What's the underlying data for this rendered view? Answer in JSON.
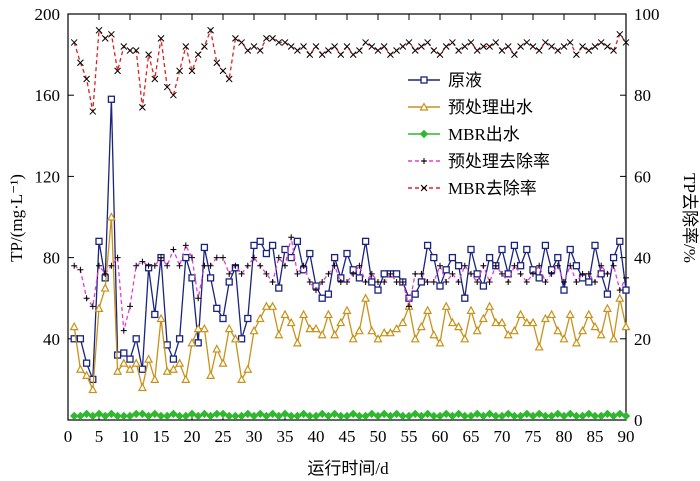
{
  "chart_data": {
    "type": "line",
    "xlabel": "运行时间/d",
    "ylabel_left": "TP/(mg·L⁻¹)",
    "ylabel_right": "TP去除率/%",
    "xlim": [
      0,
      90
    ],
    "ylim_left": [
      0,
      200
    ],
    "ylim_right": [
      0,
      100
    ],
    "x_ticks": [
      0,
      5,
      10,
      15,
      20,
      25,
      30,
      35,
      40,
      45,
      50,
      55,
      60,
      65,
      70,
      75,
      80,
      85,
      90
    ],
    "y_left_ticks": [
      40,
      80,
      120,
      160,
      200
    ],
    "y_right_ticks": [
      0,
      20,
      40,
      60,
      80,
      100
    ],
    "x": [
      1,
      2,
      3,
      4,
      5,
      6,
      7,
      8,
      9,
      10,
      11,
      12,
      13,
      14,
      15,
      16,
      17,
      18,
      19,
      20,
      21,
      22,
      23,
      24,
      25,
      26,
      27,
      28,
      29,
      30,
      31,
      32,
      33,
      34,
      35,
      36,
      37,
      38,
      39,
      40,
      41,
      42,
      43,
      44,
      45,
      46,
      47,
      48,
      49,
      50,
      51,
      52,
      53,
      54,
      55,
      56,
      57,
      58,
      59,
      60,
      61,
      62,
      63,
      64,
      65,
      66,
      67,
      68,
      69,
      70,
      71,
      72,
      73,
      74,
      75,
      76,
      77,
      78,
      79,
      80,
      81,
      82,
      83,
      84,
      85,
      86,
      87,
      88,
      89,
      90
    ],
    "series": [
      {
        "name": "原液",
        "axis": "left",
        "color": "#1a237e",
        "marker": "square",
        "values": [
          40,
          40,
          28,
          20,
          88,
          70,
          158,
          32,
          33,
          30,
          40,
          25,
          75,
          52,
          80,
          37,
          30,
          40,
          80,
          70,
          38,
          85,
          70,
          55,
          50,
          68,
          75,
          40,
          50,
          86,
          88,
          82,
          86,
          65,
          84,
          80,
          88,
          74,
          82,
          66,
          60,
          62,
          80,
          70,
          82,
          74,
          70,
          88,
          68,
          64,
          72,
          72,
          72,
          68,
          60,
          62,
          68,
          86,
          80,
          66,
          74,
          80,
          76,
          60,
          84,
          72,
          66,
          80,
          76,
          84,
          72,
          86,
          76,
          84,
          74,
          70,
          86,
          74,
          80,
          64,
          84,
          76,
          70,
          68,
          86,
          72,
          62,
          80,
          88,
          64
        ]
      },
      {
        "name": "预处理出水",
        "axis": "left",
        "color": "#c8921a",
        "marker": "triangle",
        "values": [
          46,
          25,
          22,
          15,
          55,
          65,
          100,
          24,
          28,
          25,
          28,
          16,
          30,
          20,
          50,
          24,
          25,
          28,
          20,
          38,
          45,
          45,
          22,
          35,
          28,
          45,
          40,
          20,
          25,
          44,
          50,
          56,
          56,
          42,
          52,
          48,
          38,
          52,
          45,
          45,
          42,
          52,
          42,
          48,
          54,
          40,
          44,
          60,
          44,
          40,
          43,
          43,
          45,
          48,
          56,
          40,
          46,
          54,
          42,
          38,
          56,
          48,
          46,
          40,
          54,
          44,
          50,
          56,
          48,
          48,
          42,
          44,
          52,
          48,
          48,
          36,
          50,
          52,
          44,
          40,
          52,
          38,
          44,
          52,
          46,
          42,
          55,
          40,
          60,
          46
        ]
      },
      {
        "name": "MBR出水",
        "axis": "left",
        "color": "#2eb82e",
        "marker": "diamond",
        "values": [
          2,
          2,
          3,
          2,
          3,
          2,
          3,
          2,
          2,
          2,
          3,
          3,
          2,
          3,
          2,
          2,
          3,
          2,
          2,
          3,
          2,
          3,
          2,
          3,
          3,
          2,
          2,
          2,
          3,
          2,
          3,
          2,
          3,
          2,
          3,
          2,
          2,
          3,
          2,
          2,
          3,
          2,
          3,
          2,
          2,
          3,
          2,
          2,
          3,
          2,
          3,
          2,
          3,
          2,
          2,
          3,
          2,
          3,
          2,
          2,
          3,
          2,
          3,
          2,
          2,
          3,
          2,
          3,
          2,
          2,
          3,
          2,
          2,
          3,
          2,
          3,
          2,
          2,
          3,
          2,
          3,
          2,
          2,
          3,
          2,
          2,
          3,
          2,
          3,
          2
        ]
      },
      {
        "name": "预处理去除率",
        "axis": "right",
        "color": "#e040d0",
        "marker": "plus",
        "values": [
          38,
          37,
          30,
          28,
          38,
          36,
          38,
          40,
          22,
          28,
          38,
          39,
          38,
          38,
          40,
          38,
          42,
          38,
          43,
          40,
          30,
          38,
          38,
          40,
          40,
          36,
          38,
          36,
          38,
          40,
          38,
          36,
          34,
          40,
          38,
          45,
          36,
          38,
          34,
          32,
          34,
          36,
          38,
          34,
          34,
          36,
          38,
          34,
          36,
          34,
          34,
          36,
          34,
          34,
          28,
          36,
          36,
          34,
          34,
          38,
          34,
          36,
          34,
          38,
          36,
          34,
          38,
          34,
          38,
          36,
          34,
          38,
          36,
          34,
          36,
          38,
          34,
          36,
          38,
          34,
          38,
          34,
          36,
          36,
          34,
          38,
          36,
          38,
          32,
          35
        ]
      },
      {
        "name": "MBR去除率",
        "axis": "right",
        "color": "#e02020",
        "marker": "x",
        "values": [
          93,
          88,
          84,
          76,
          96,
          94,
          95,
          86,
          92,
          91,
          91,
          77,
          90,
          84,
          94,
          82,
          80,
          86,
          92,
          86,
          90,
          92,
          96,
          88,
          86,
          84,
          94,
          93,
          91,
          92,
          91,
          94,
          94,
          93,
          93,
          92,
          91,
          92,
          90,
          92,
          90,
          91,
          92,
          90,
          92,
          90,
          91,
          93,
          92,
          91,
          92,
          90,
          91,
          92,
          93,
          91,
          92,
          93,
          91,
          90,
          92,
          93,
          91,
          92,
          93,
          91,
          92,
          92,
          93,
          91,
          92,
          90,
          92,
          93,
          92,
          91,
          93,
          92,
          91,
          92,
          93,
          90,
          92,
          91,
          92,
          93,
          92,
          91,
          95,
          93
        ]
      }
    ],
    "legend": [
      {
        "name": "原液"
      },
      {
        "name": "预处理出水"
      },
      {
        "name": "MBR出水"
      },
      {
        "name": "预处理去除率"
      },
      {
        "name": "MBR去除率"
      }
    ],
    "legend_position": "upper-right"
  }
}
